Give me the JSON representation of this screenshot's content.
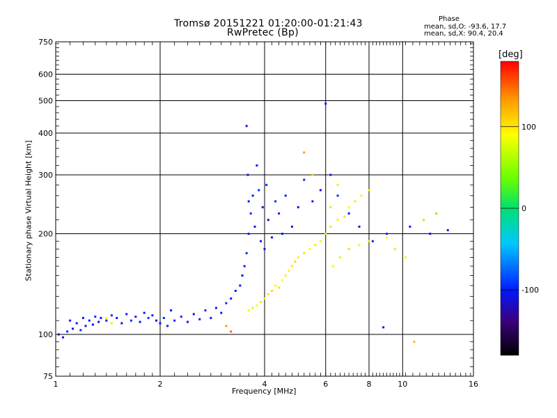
{
  "title_line1": "Tromsø 20151221 01:20:00-01:21:43",
  "title_line2": "RwPretec (Bp)",
  "phase_header": "Phase",
  "phase_o": "mean, sd,O: -93.6, 17.7",
  "phase_x": "mean, sd,X:  90.4, 20.4",
  "colorbar": {
    "label": "[deg]",
    "ticks": [
      "100",
      "0",
      "-100"
    ],
    "tick_values": [
      100,
      0,
      -100
    ],
    "range": [
      -180,
      180
    ]
  },
  "chart_data": {
    "type": "scatter",
    "xlabel": "Frequency [MHz]",
    "ylabel": "Stationary phase Virtual Height [km]",
    "xscale": "log",
    "yscale": "log",
    "xlim": [
      1,
      16
    ],
    "ylim": [
      75,
      750
    ],
    "grid": true,
    "x_ticks": [
      1,
      2,
      4,
      6,
      8,
      10,
      16
    ],
    "x_tick_labels": [
      "1",
      "2",
      "4",
      "6",
      "8",
      "10",
      "16"
    ],
    "y_ticks": [
      75,
      100,
      200,
      300,
      400,
      500,
      600,
      750
    ],
    "y_tick_labels": [
      "75",
      "100",
      "200",
      "300",
      "400",
      "500",
      "600",
      "750"
    ],
    "series": [
      {
        "points": [
          [
            1.02,
            100,
            -100
          ],
          [
            1.05,
            98,
            -105
          ],
          [
            1.08,
            102,
            -95
          ],
          [
            1.1,
            110,
            -100
          ],
          [
            1.12,
            104,
            -110
          ],
          [
            1.15,
            108,
            -100
          ],
          [
            1.18,
            103,
            -95
          ],
          [
            1.2,
            112,
            -100
          ],
          [
            1.22,
            106,
            -105
          ],
          [
            1.25,
            110,
            -100
          ],
          [
            1.28,
            107,
            -110
          ],
          [
            1.3,
            113,
            -95
          ],
          [
            1.33,
            109,
            -100
          ],
          [
            1.35,
            112,
            -100
          ],
          [
            1.4,
            110,
            -105
          ],
          [
            1.45,
            114,
            -95
          ],
          [
            1.5,
            112,
            -100
          ],
          [
            1.55,
            108,
            -110
          ],
          [
            1.6,
            115,
            -100
          ],
          [
            1.65,
            110,
            -95
          ],
          [
            1.7,
            113,
            -100
          ],
          [
            1.75,
            109,
            -105
          ],
          [
            1.8,
            116,
            -100
          ],
          [
            1.85,
            112,
            -95
          ],
          [
            1.9,
            114,
            -100
          ],
          [
            1.95,
            110,
            -110
          ],
          [
            2.0,
            108,
            -100
          ],
          [
            2.05,
            112,
            -95
          ],
          [
            2.1,
            106,
            -100
          ],
          [
            2.15,
            118,
            -105
          ],
          [
            2.2,
            110,
            -100
          ],
          [
            2.3,
            113,
            -95
          ],
          [
            2.4,
            109,
            -100
          ],
          [
            2.5,
            115,
            -105
          ],
          [
            2.6,
            111,
            -100
          ],
          [
            2.7,
            118,
            -95
          ],
          [
            2.8,
            112,
            -100
          ],
          [
            2.9,
            120,
            -110
          ],
          [
            3.0,
            116,
            -100
          ],
          [
            3.1,
            124,
            -95
          ],
          [
            3.2,
            128,
            -100
          ],
          [
            3.3,
            135,
            -105
          ],
          [
            3.4,
            140,
            -100
          ],
          [
            3.45,
            150,
            -110
          ],
          [
            3.5,
            160,
            -100
          ],
          [
            3.55,
            175,
            -95
          ],
          [
            3.6,
            200,
            -100
          ],
          [
            3.6,
            250,
            -105
          ],
          [
            3.58,
            300,
            -110
          ],
          [
            3.55,
            420,
            -100
          ],
          [
            3.65,
            230,
            -95
          ],
          [
            3.7,
            260,
            -100
          ],
          [
            3.75,
            210,
            -105
          ],
          [
            3.8,
            320,
            -100
          ],
          [
            3.85,
            270,
            -95
          ],
          [
            3.9,
            190,
            -100
          ],
          [
            3.95,
            240,
            -110
          ],
          [
            4.0,
            180,
            -100
          ],
          [
            4.05,
            280,
            -95
          ],
          [
            4.1,
            220,
            -105
          ],
          [
            4.2,
            195,
            -100
          ],
          [
            4.3,
            250,
            -95
          ],
          [
            4.4,
            230,
            -100
          ],
          [
            4.5,
            200,
            -105
          ],
          [
            4.6,
            260,
            -100
          ],
          [
            4.8,
            210,
            -110
          ],
          [
            5.0,
            240,
            -100
          ],
          [
            5.2,
            290,
            -95
          ],
          [
            5.5,
            250,
            -100
          ],
          [
            5.8,
            270,
            -105
          ],
          [
            6.2,
            300,
            -100
          ],
          [
            6.5,
            260,
            -95
          ],
          [
            7.0,
            230,
            -100
          ],
          [
            7.5,
            210,
            -110
          ],
          [
            8.2,
            190,
            -100
          ],
          [
            9.0,
            200,
            -95
          ],
          [
            10.5,
            210,
            -100
          ],
          [
            12.0,
            200,
            -105
          ],
          [
            13.5,
            205,
            -100
          ],
          [
            8.8,
            105,
            -110
          ],
          [
            6.0,
            490,
            -100
          ]
        ]
      },
      {
        "points": [
          [
            1.4,
            112,
            95
          ],
          [
            1.45,
            108,
            100
          ],
          [
            3.6,
            118,
            95
          ],
          [
            3.7,
            120,
            100
          ],
          [
            3.8,
            122,
            90
          ],
          [
            3.9,
            125,
            100
          ],
          [
            4.0,
            128,
            95
          ],
          [
            4.1,
            132,
            100
          ],
          [
            4.2,
            135,
            105
          ],
          [
            4.3,
            140,
            95
          ],
          [
            4.4,
            138,
            100
          ],
          [
            4.5,
            145,
            90
          ],
          [
            4.6,
            150,
            100
          ],
          [
            4.7,
            155,
            95
          ],
          [
            4.8,
            160,
            100
          ],
          [
            4.9,
            165,
            105
          ],
          [
            5.0,
            170,
            95
          ],
          [
            5.2,
            175,
            100
          ],
          [
            5.4,
            180,
            90
          ],
          [
            5.6,
            185,
            100
          ],
          [
            5.8,
            190,
            95
          ],
          [
            6.0,
            200,
            100
          ],
          [
            6.2,
            210,
            105
          ],
          [
            6.5,
            220,
            95
          ],
          [
            6.8,
            225,
            100
          ],
          [
            7.0,
            240,
            90
          ],
          [
            7.3,
            250,
            100
          ],
          [
            7.6,
            260,
            95
          ],
          [
            8.0,
            270,
            100
          ],
          [
            6.3,
            160,
            95
          ],
          [
            6.6,
            170,
            100
          ],
          [
            7.0,
            180,
            105
          ],
          [
            7.5,
            185,
            95
          ],
          [
            8.0,
            190,
            100
          ],
          [
            9.0,
            195,
            90
          ],
          [
            9.5,
            180,
            100
          ],
          [
            10.2,
            170,
            95
          ],
          [
            11.5,
            220,
            60
          ],
          [
            12.5,
            230,
            40
          ],
          [
            10.8,
            95,
            120
          ],
          [
            5.5,
            300,
            110
          ],
          [
            6.5,
            280,
            100
          ],
          [
            3.2,
            102,
            150
          ],
          [
            3.1,
            106,
            130
          ],
          [
            5.2,
            350,
            130
          ],
          [
            6.2,
            240,
            70
          ]
        ]
      }
    ],
    "series_note": "each point is [frequency MHz, virtual height km, phase deg]"
  }
}
